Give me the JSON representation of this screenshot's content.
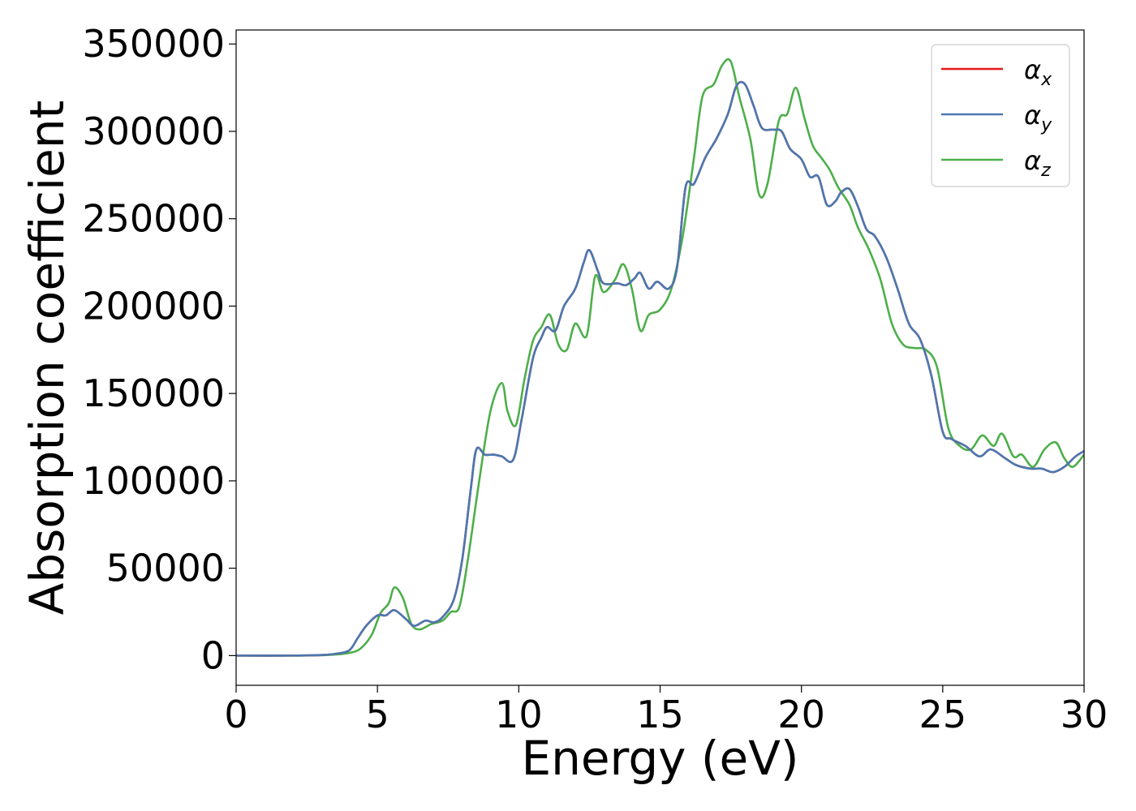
{
  "chart_data": {
    "type": "line",
    "xlabel": "Energy (eV)",
    "ylabel": "Absorption coefficient",
    "xlim": [
      0,
      30
    ],
    "ylim": [
      -17000,
      358000
    ],
    "xticks": [
      0,
      5,
      10,
      15,
      20,
      25,
      30
    ],
    "xtick_labels": [
      "0",
      "5",
      "10",
      "15",
      "20",
      "25",
      "30"
    ],
    "yticks": [
      0,
      50000,
      100000,
      150000,
      200000,
      250000,
      300000,
      350000
    ],
    "ytick_labels": [
      "0",
      "50000",
      "100000",
      "150000",
      "200000",
      "250000",
      "300000",
      "350000"
    ],
    "grid": false,
    "legend_position": "top-right",
    "series": [
      {
        "name": "αx",
        "symbol": "α",
        "subscript": "x",
        "color": "#e41a1c",
        "x": [
          0,
          2,
          3,
          3.5,
          4,
          4.3,
          4.6,
          5.0,
          5.3,
          5.6,
          6.0,
          6.3,
          6.7,
          7.0,
          7.3,
          7.7,
          8.0,
          8.3,
          8.5,
          8.8,
          9.1,
          9.4,
          9.8,
          10.1,
          10.5,
          10.8,
          11.0,
          11.3,
          11.6,
          12.0,
          12.3,
          12.5,
          12.8,
          13.0,
          13.5,
          13.8,
          14.1,
          14.3,
          14.6,
          14.9,
          15.3,
          15.6,
          15.9,
          16.2,
          16.6,
          17.0,
          17.4,
          17.7,
          18.0,
          18.3,
          18.6,
          19.0,
          19.3,
          19.6,
          20.0,
          20.3,
          20.6,
          20.9,
          21.2,
          21.4,
          21.7,
          22.0,
          22.3,
          22.6,
          23.0,
          23.4,
          23.8,
          24.2,
          24.6,
          25.0,
          25.3,
          25.8,
          26.3,
          26.7,
          27.2,
          27.6,
          28.1,
          28.5,
          28.9,
          29.3,
          29.7,
          30.0
        ],
        "values": [
          0,
          0,
          300,
          1000,
          3000,
          10000,
          17000,
          23000,
          23000,
          26000,
          21000,
          17000,
          20000,
          19000,
          22000,
          32000,
          55000,
          95000,
          118000,
          115000,
          115000,
          114000,
          112000,
          135000,
          170000,
          182000,
          188000,
          186000,
          200000,
          210000,
          225000,
          232000,
          220000,
          213000,
          213000,
          212000,
          216000,
          219000,
          210000,
          214000,
          210000,
          222000,
          268000,
          270000,
          285000,
          296000,
          310000,
          326000,
          327000,
          315000,
          302000,
          301000,
          300000,
          290000,
          284000,
          274000,
          274000,
          258000,
          260000,
          265000,
          267000,
          257000,
          244000,
          240000,
          228000,
          210000,
          190000,
          181000,
          160000,
          128000,
          124000,
          120000,
          114000,
          118000,
          113000,
          109000,
          107000,
          107000,
          105000,
          108000,
          114000,
          117000
        ]
      },
      {
        "name": "αy",
        "symbol": "α",
        "subscript": "y",
        "color": "#4a78b0",
        "x": [
          0,
          2,
          3,
          3.5,
          4,
          4.3,
          4.6,
          5.0,
          5.3,
          5.6,
          6.0,
          6.3,
          6.7,
          7.0,
          7.3,
          7.7,
          8.0,
          8.3,
          8.5,
          8.8,
          9.1,
          9.4,
          9.8,
          10.1,
          10.5,
          10.8,
          11.0,
          11.3,
          11.6,
          12.0,
          12.3,
          12.5,
          12.8,
          13.0,
          13.5,
          13.8,
          14.1,
          14.3,
          14.6,
          14.9,
          15.3,
          15.6,
          15.9,
          16.2,
          16.6,
          17.0,
          17.4,
          17.7,
          18.0,
          18.3,
          18.6,
          19.0,
          19.3,
          19.6,
          20.0,
          20.3,
          20.6,
          20.9,
          21.2,
          21.4,
          21.7,
          22.0,
          22.3,
          22.6,
          23.0,
          23.4,
          23.8,
          24.2,
          24.6,
          25.0,
          25.3,
          25.8,
          26.3,
          26.7,
          27.2,
          27.6,
          28.1,
          28.5,
          28.9,
          29.3,
          29.7,
          30.0
        ],
        "values": [
          0,
          0,
          300,
          1000,
          3000,
          10000,
          17000,
          23000,
          23000,
          26000,
          21000,
          17000,
          20000,
          19000,
          22000,
          32000,
          55000,
          95000,
          118000,
          115000,
          115000,
          114000,
          112000,
          135000,
          170000,
          182000,
          188000,
          186000,
          200000,
          210000,
          225000,
          232000,
          220000,
          213000,
          213000,
          212000,
          216000,
          219000,
          210000,
          214000,
          210000,
          222000,
          268000,
          270000,
          285000,
          296000,
          310000,
          326000,
          327000,
          315000,
          302000,
          301000,
          300000,
          290000,
          284000,
          274000,
          274000,
          258000,
          260000,
          265000,
          267000,
          257000,
          244000,
          240000,
          228000,
          210000,
          190000,
          181000,
          160000,
          128000,
          124000,
          120000,
          114000,
          118000,
          113000,
          109000,
          107000,
          107000,
          105000,
          108000,
          114000,
          117000
        ]
      },
      {
        "name": "αz",
        "symbol": "α",
        "subscript": "z",
        "color": "#4daf4a",
        "x": [
          0,
          2,
          3,
          3.5,
          4,
          4.4,
          4.8,
          5.1,
          5.4,
          5.6,
          5.9,
          6.2,
          6.5,
          6.9,
          7.3,
          7.6,
          7.9,
          8.2,
          8.6,
          9.0,
          9.4,
          9.6,
          9.9,
          10.2,
          10.5,
          10.8,
          11.1,
          11.4,
          11.7,
          12.0,
          12.4,
          12.7,
          13.0,
          13.4,
          13.7,
          14.0,
          14.3,
          14.6,
          15.0,
          15.4,
          15.8,
          16.2,
          16.5,
          16.9,
          17.2,
          17.5,
          17.8,
          18.2,
          18.5,
          18.8,
          19.2,
          19.5,
          19.8,
          20.1,
          20.4,
          20.7,
          21.0,
          21.3,
          21.7,
          22.0,
          22.4,
          22.8,
          23.2,
          23.6,
          24.0,
          24.4,
          24.8,
          25.2,
          25.6,
          26.0,
          26.4,
          26.8,
          27.1,
          27.5,
          27.8,
          28.2,
          28.6,
          29.0,
          29.3,
          29.6,
          30.0
        ],
        "values": [
          0,
          0,
          200,
          600,
          1500,
          4000,
          12000,
          24000,
          30000,
          39000,
          33000,
          18000,
          15000,
          18000,
          20000,
          25000,
          28000,
          55000,
          100000,
          140000,
          156000,
          140000,
          132000,
          158000,
          180000,
          188000,
          195000,
          178000,
          175000,
          190000,
          183000,
          217000,
          208000,
          215000,
          224000,
          210000,
          186000,
          195000,
          198000,
          210000,
          240000,
          285000,
          320000,
          327000,
          338000,
          340000,
          320000,
          295000,
          264000,
          270000,
          306000,
          310000,
          325000,
          308000,
          292000,
          285000,
          278000,
          268000,
          258000,
          245000,
          232000,
          215000,
          190000,
          178000,
          176000,
          175000,
          165000,
          130000,
          120000,
          118000,
          126000,
          120000,
          127000,
          114000,
          115000,
          108000,
          118000,
          122000,
          113000,
          108000,
          115000
        ]
      }
    ]
  }
}
